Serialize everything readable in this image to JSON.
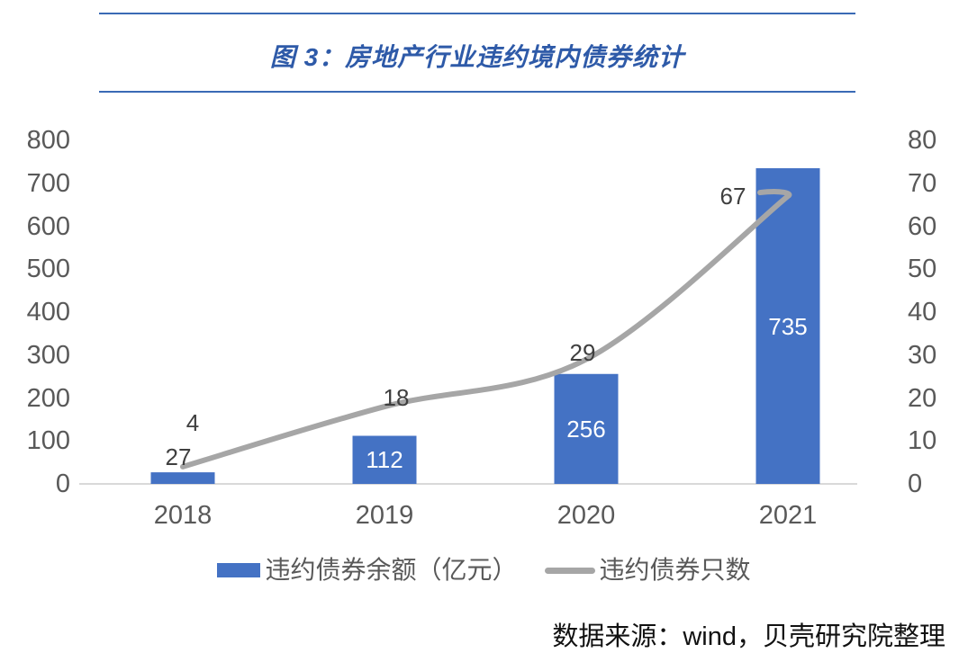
{
  "header": {
    "title": "图 3：房地产行业违约境内债券统计"
  },
  "chart_data": {
    "type": "combo",
    "categories": [
      "2018",
      "2019",
      "2020",
      "2021"
    ],
    "series": [
      {
        "name": "违约债券余额（亿元）",
        "type": "bar",
        "axis": "left",
        "values": [
          27,
          112,
          256,
          735
        ],
        "color": "#4472C4"
      },
      {
        "name": "违约债券只数",
        "type": "line",
        "axis": "right",
        "values": [
          4,
          18,
          29,
          67
        ],
        "color": "#A6A6A6"
      }
    ],
    "left_axis": {
      "ticks": [
        0,
        100,
        200,
        300,
        400,
        500,
        600,
        700,
        800
      ],
      "range": [
        0,
        800
      ]
    },
    "right_axis": {
      "ticks": [
        0,
        10,
        20,
        30,
        40,
        50,
        60,
        70,
        80
      ],
      "range": [
        0,
        80
      ]
    },
    "grid": "baseline-only",
    "legend_position": "bottom",
    "title": "图 3：房地产行业违约境内债券统计"
  },
  "legend": {
    "items": [
      {
        "label": "违约债券余额（亿元）",
        "swatch": "bar",
        "color": "#4472C4"
      },
      {
        "label": "违约债券只数",
        "swatch": "line",
        "color": "#A6A6A6"
      }
    ]
  },
  "footer": {
    "source": "数据来源：wind，贝壳研究院整理"
  },
  "colors": {
    "bar": "#4472C4",
    "line": "#A6A6A6",
    "title": "#2E5AA8",
    "rule": "#3A6AB5",
    "axis_text": "#595959",
    "data_label": "#3F3F3F",
    "bar_label": "#FFFFFF",
    "baseline": "#D9D9D9"
  }
}
